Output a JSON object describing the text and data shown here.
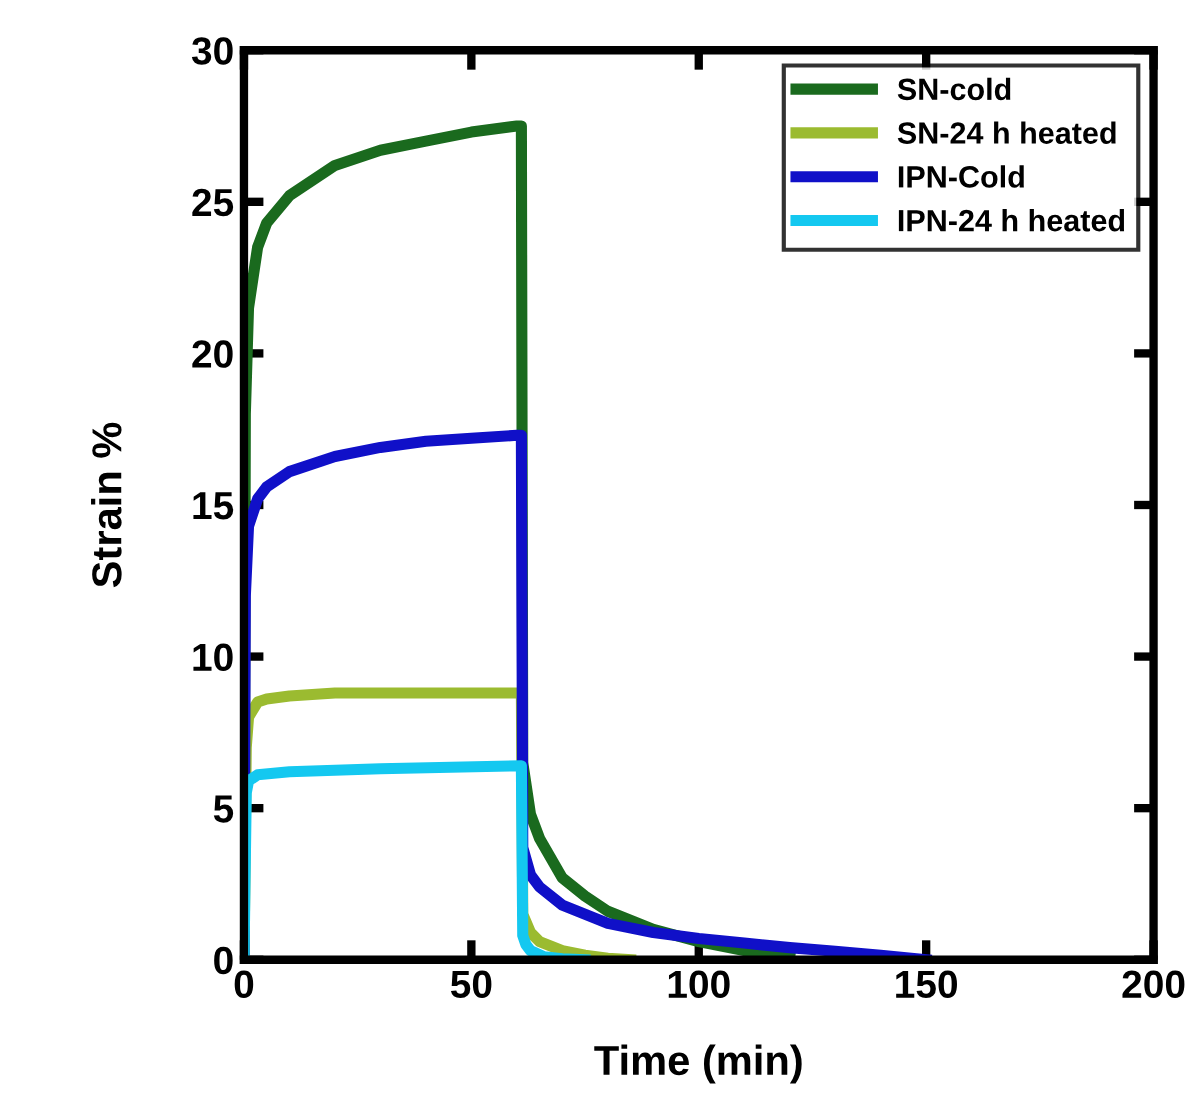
{
  "chart_data": {
    "type": "line",
    "xlabel": "Time (min)",
    "ylabel": "Strain %",
    "xlim": [
      0,
      200
    ],
    "ylim": [
      0,
      30
    ],
    "xticks": [
      0,
      50,
      100,
      150,
      200
    ],
    "yticks": [
      0,
      5,
      10,
      15,
      20,
      25,
      30
    ],
    "legend": "top right",
    "grid": false,
    "marker": "none",
    "line_style": "solid",
    "series": [
      {
        "name": "SN-cold",
        "color": "#1a6a1e",
        "x": [
          0,
          0.3,
          1,
          3,
          5,
          10,
          20,
          30,
          40,
          50,
          60,
          61,
          61.3,
          63,
          65,
          70,
          75,
          80,
          90,
          100,
          110,
          120
        ],
        "values": [
          0,
          18,
          21.5,
          23.5,
          24.3,
          25.2,
          26.2,
          26.7,
          27.0,
          27.3,
          27.5,
          27.5,
          6.5,
          4.8,
          4.0,
          2.7,
          2.1,
          1.6,
          1.0,
          0.6,
          0.3,
          0.1
        ]
      },
      {
        "name": "SN-24 h heated",
        "color": "#9bbb30",
        "x": [
          0,
          0.5,
          1,
          3,
          5,
          10,
          20,
          40,
          61,
          61.3,
          63,
          65,
          70,
          75,
          80,
          85
        ],
        "values": [
          0,
          7,
          8.0,
          8.5,
          8.6,
          8.7,
          8.8,
          8.8,
          8.8,
          1.5,
          0.9,
          0.6,
          0.3,
          0.15,
          0.05,
          0
        ]
      },
      {
        "name": "IPN-Cold",
        "color": "#1010c8",
        "x": [
          0,
          0.3,
          1,
          3,
          5,
          10,
          20,
          30,
          40,
          50,
          60,
          61,
          61.3,
          63,
          65,
          70,
          80,
          90,
          100,
          110,
          120,
          130,
          140,
          150
        ],
        "values": [
          0,
          12,
          14.3,
          15.2,
          15.6,
          16.1,
          16.6,
          16.9,
          17.1,
          17.2,
          17.3,
          17.3,
          3.7,
          2.8,
          2.4,
          1.8,
          1.2,
          0.9,
          0.7,
          0.55,
          0.4,
          0.28,
          0.15,
          0
        ]
      },
      {
        "name": "IPN-24 h heated",
        "color": "#14c8f0",
        "x": [
          0,
          0.5,
          1,
          3,
          10,
          30,
          61,
          61.3,
          62,
          63,
          66,
          70,
          75
        ],
        "values": [
          0,
          5.5,
          5.9,
          6.1,
          6.2,
          6.3,
          6.4,
          0.8,
          0.5,
          0.3,
          0.1,
          0.03,
          0
        ]
      }
    ]
  }
}
